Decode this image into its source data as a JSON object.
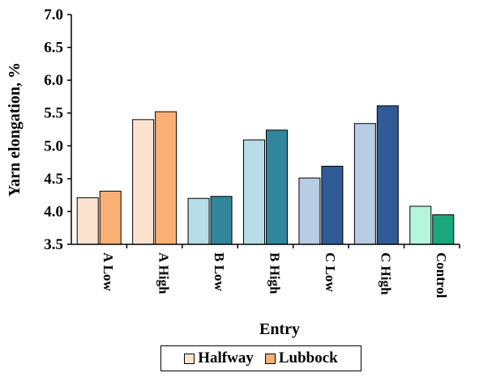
{
  "chart_data": {
    "type": "bar",
    "title": "",
    "xlabel": "Entry",
    "ylabel": "Yarn elongation, %",
    "ylim": [
      3.5,
      7.0
    ],
    "yticks": [
      "3.5",
      "4.0",
      "4.5",
      "5.0",
      "5.5",
      "6.0",
      "6.5",
      "7.0"
    ],
    "grid": false,
    "legend_position": "bottom",
    "categories": [
      "A Low",
      "A High",
      "B Low",
      "B High",
      "C Low",
      "C High",
      "Control"
    ],
    "series": [
      {
        "name": "Halfway",
        "values": [
          4.21,
          5.4,
          4.2,
          5.09,
          4.51,
          5.34,
          4.08
        ]
      },
      {
        "name": "Lubbock",
        "values": [
          4.31,
          5.52,
          4.23,
          5.24,
          4.69,
          5.61,
          3.95
        ]
      }
    ],
    "colors": {
      "halfway": [
        "#fde3cf",
        "#fde3cf",
        "#b6dde8",
        "#b6dde8",
        "#b8cce4",
        "#b8cce4",
        "#b3f5dd"
      ],
      "lubbock": [
        "#fab074",
        "#fab074",
        "#31869b",
        "#31869b",
        "#2f5b96",
        "#2f5b96",
        "#1aa87a"
      ],
      "legend_halfway": "#fde3cf",
      "legend_lubbock": "#fab074"
    }
  }
}
